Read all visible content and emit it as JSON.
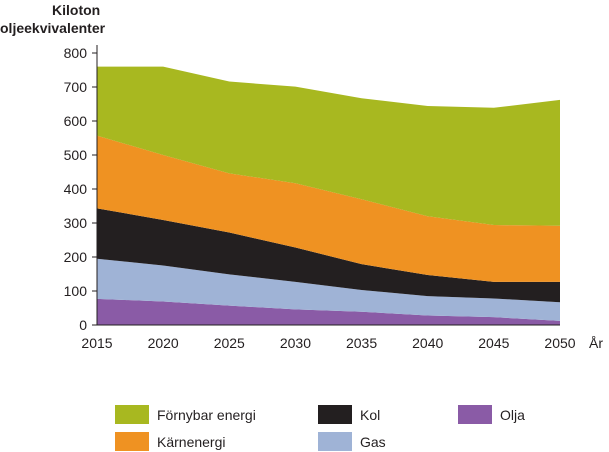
{
  "chart_data": {
    "type": "area",
    "stacked": true,
    "ylabel_line1": "Kiloton",
    "ylabel_line2": "oljeekvivalenter",
    "xlabel": "År",
    "ylim": [
      0,
      800
    ],
    "yticks": [
      0,
      100,
      200,
      300,
      400,
      500,
      600,
      700,
      800
    ],
    "x": [
      2015,
      2020,
      2025,
      2030,
      2035,
      2040,
      2045,
      2050
    ],
    "series": [
      {
        "name": "Olja",
        "color": "#8a5ba6",
        "values": [
          77,
          69,
          57,
          46,
          39,
          28,
          23,
          12
        ]
      },
      {
        "name": "Gas",
        "color": "#9fb3d6",
        "values": [
          118,
          106,
          92,
          81,
          64,
          57,
          55,
          55
        ]
      },
      {
        "name": "Kol",
        "color": "#231f20",
        "values": [
          148,
          134,
          123,
          101,
          76,
          62,
          49,
          60
        ]
      },
      {
        "name": "Kärnenergi",
        "color": "#ef9222",
        "values": [
          214,
          191,
          174,
          189,
          191,
          173,
          167,
          165
        ]
      },
      {
        "name": "Förnybar energi",
        "color": "#a8b820",
        "values": [
          203,
          260,
          270,
          284,
          297,
          324,
          345,
          370
        ]
      }
    ],
    "legend": "bottom"
  }
}
